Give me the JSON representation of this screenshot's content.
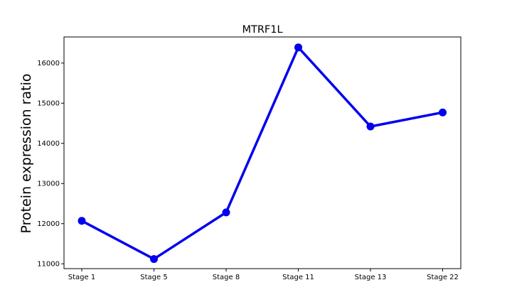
{
  "chart_data": {
    "type": "line",
    "title": "MTRF1L",
    "xlabel": "",
    "ylabel": "Protein expression ratio",
    "categories": [
      "Stage 1",
      "Stage 5",
      "Stage 8",
      "Stage 11",
      "Stage 13",
      "Stage 22"
    ],
    "series": [
      {
        "values": [
          12070,
          11120,
          12280,
          16390,
          14420,
          14770
        ]
      }
    ],
    "ylim": [
      10880,
      16650
    ],
    "yticks": [
      11000,
      12000,
      13000,
      14000,
      15000,
      16000
    ],
    "grid": false,
    "line_color": "#0000ee",
    "marker": "circle"
  }
}
